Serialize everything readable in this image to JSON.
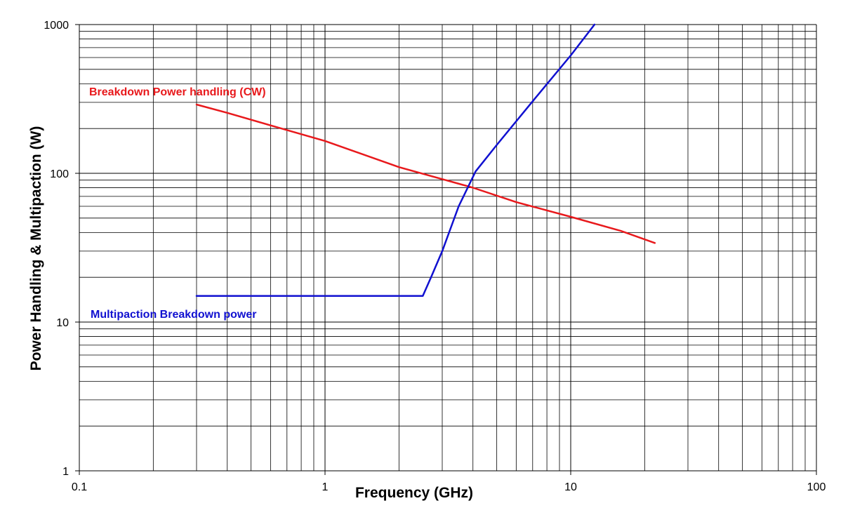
{
  "chart_data": {
    "type": "line",
    "xlabel": "Frequency (GHz)",
    "ylabel": "Power Handling & Multipaction (W)",
    "x_scale": "log",
    "y_scale": "log",
    "xlim": [
      0.1,
      100
    ],
    "ylim": [
      1,
      1000
    ],
    "x_ticks": [
      "0.1",
      "1",
      "10",
      "100"
    ],
    "y_ticks": [
      "1",
      "10",
      "100",
      "1000"
    ],
    "grid": true,
    "series": [
      {
        "name": "Breakdown Power handling (CW)",
        "color": "#e8191c",
        "x": [
          0.3,
          0.4,
          0.6,
          1,
          2,
          4,
          6,
          10,
          16,
          22
        ],
        "y": [
          290,
          255,
          210,
          165,
          110,
          80,
          64,
          51,
          41,
          34
        ]
      },
      {
        "name": "Multipaction Breakdown power",
        "color": "#1010d0",
        "x": [
          0.3,
          1,
          2.5,
          2.7,
          3,
          3.5,
          4.1,
          5,
          7,
          10,
          12.5
        ],
        "y": [
          15,
          15,
          15,
          20,
          30,
          60,
          103,
          155,
          305,
          620,
          1000
        ]
      }
    ]
  }
}
